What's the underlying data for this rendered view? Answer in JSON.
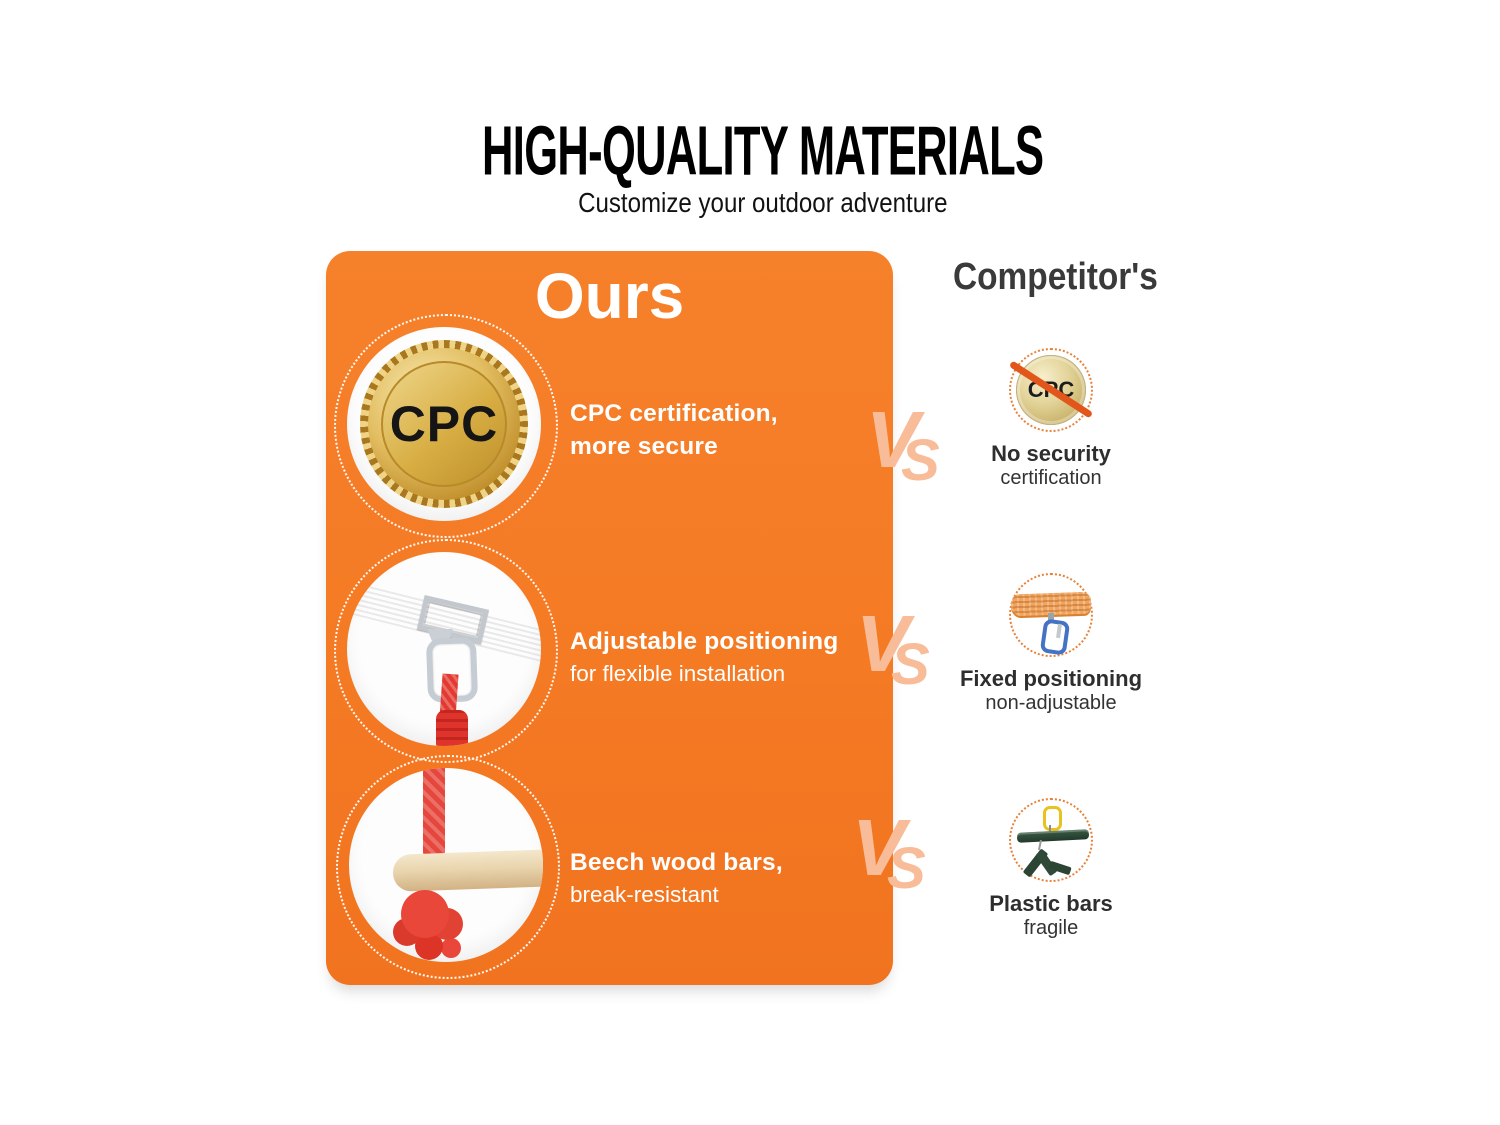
{
  "header": {
    "title": "HIGH-QUALITY MATERIALS",
    "subtitle": "Customize your outdoor adventure"
  },
  "ours": {
    "heading": "Ours",
    "items": [
      {
        "icon": "gold-cpc-medal",
        "medal_text": "CPC",
        "line1": "CPC certification,",
        "line2": "more secure"
      },
      {
        "icon": "adjustable-strap-carabiner-photo",
        "line1": "Adjustable positioning",
        "line2": "for flexible installation"
      },
      {
        "icon": "beech-wood-bar-rope-photo",
        "line1": "Beech wood bars,",
        "line2": "break-resistant"
      }
    ]
  },
  "competitor": {
    "heading": "Competitor's",
    "items": [
      {
        "icon": "crossed-out-cpc-medal",
        "medal_text": "CPC",
        "line1": "No security",
        "line2": "certification"
      },
      {
        "icon": "fixed-strap-carabiner",
        "line1": "Fixed positioning",
        "line2": "non-adjustable"
      },
      {
        "icon": "broken-plastic-bar",
        "line1": "Plastic bars",
        "line2": "fragile"
      }
    ]
  },
  "vs": {
    "v": "V",
    "s": "S"
  },
  "colors": {
    "card_orange": "#F57C25",
    "vs_peach": "#F8BC98",
    "slash_orange": "#E2561B",
    "medal_gold": "#D9AC45",
    "competitor_heading_gray": "#3A3A3A",
    "dotted_ring_orange": "#E8823B"
  }
}
